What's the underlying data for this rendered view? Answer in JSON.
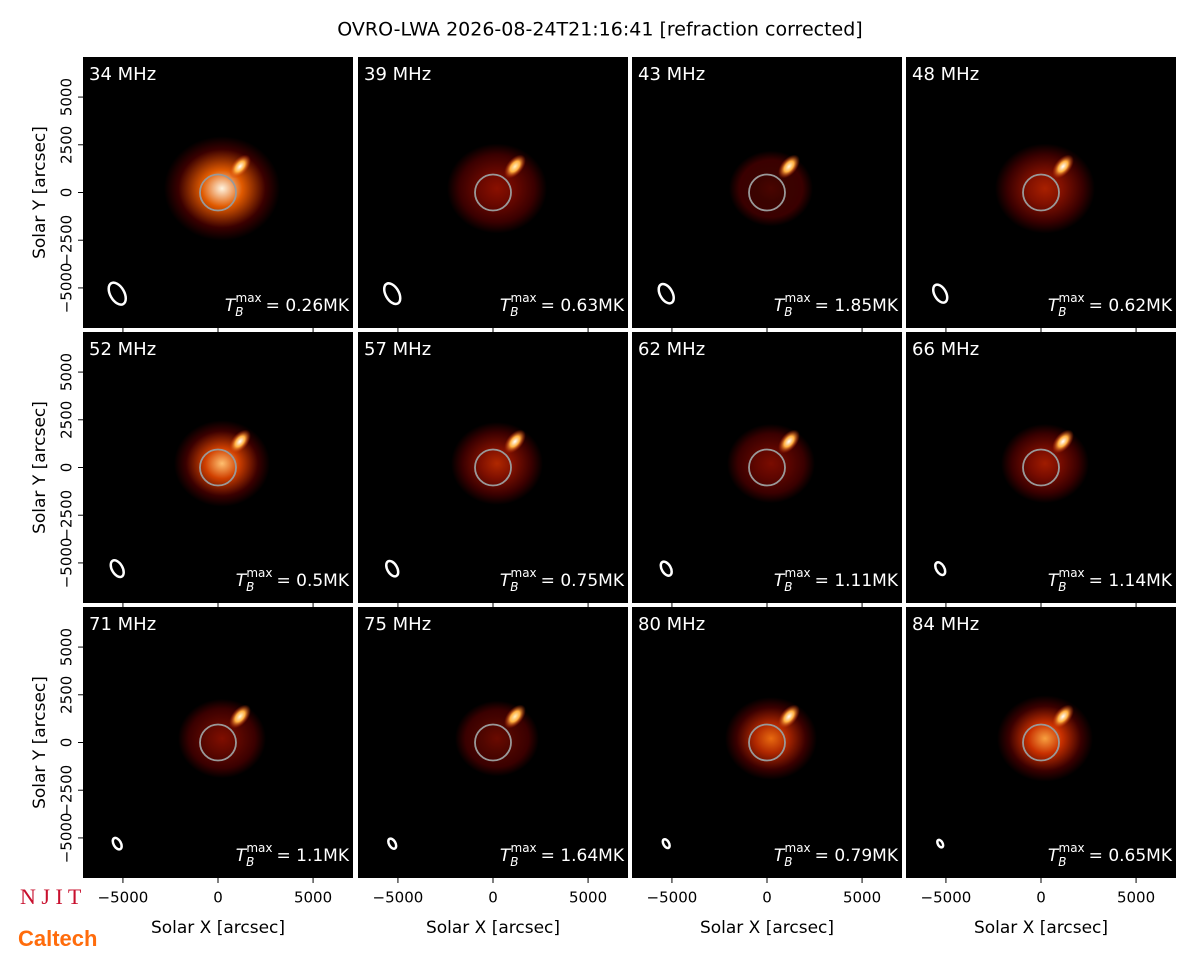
{
  "header": {
    "title": "OVRO-LWA 2026-08-24T21:16:41 [refraction corrected]"
  },
  "axes": {
    "xlabel": "Solar X [arcsec]",
    "ylabel": "Solar Y [arcsec]",
    "xlim": [
      -7100,
      7100
    ],
    "ylim": [
      -7100,
      7100
    ],
    "xticks": [
      {
        "value": -5000,
        "label": "−5000"
      },
      0,
      5000
    ],
    "yticks": [
      {
        "value": -5000,
        "label": "−5000"
      },
      {
        "value": -2500,
        "label": "−2500"
      },
      0,
      2500,
      5000
    ]
  },
  "tb_symbol": {
    "base": "T",
    "sub": "B",
    "sup": "max"
  },
  "panels": [
    {
      "frequency": "34 MHz",
      "tmax": "= 0.26MK"
    },
    {
      "frequency": "39 MHz",
      "tmax": "= 0.63MK"
    },
    {
      "frequency": "43 MHz",
      "tmax": "= 1.85MK"
    },
    {
      "frequency": "48 MHz",
      "tmax": "= 0.62MK"
    },
    {
      "frequency": "52 MHz",
      "tmax": "= 0.5MK"
    },
    {
      "frequency": "57 MHz",
      "tmax": "= 0.75MK"
    },
    {
      "frequency": "62 MHz",
      "tmax": "= 1.11MK"
    },
    {
      "frequency": "66 MHz",
      "tmax": "= 1.14MK"
    },
    {
      "frequency": "71 MHz",
      "tmax": "= 1.1MK"
    },
    {
      "frequency": "75 MHz",
      "tmax": "= 1.64MK"
    },
    {
      "frequency": "80 MHz",
      "tmax": "= 0.79MK"
    },
    {
      "frequency": "84 MHz",
      "tmax": "= 0.65MK"
    }
  ],
  "logos": {
    "njit": "N J I T",
    "caltech": "Caltech"
  }
}
